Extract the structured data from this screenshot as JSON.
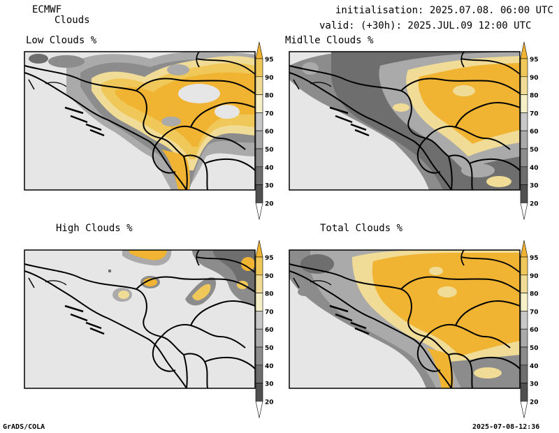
{
  "header": {
    "model": "ECMWF",
    "product": "Clouds",
    "init": "initialisation: 2025.07.08. 06:00 UTC",
    "valid": "valid: (+30h): 2025.JUL.09 12:00 UTC"
  },
  "panels": [
    {
      "title": "Low Clouds %"
    },
    {
      "title": "Midlle Clouds %"
    },
    {
      "title": "High Clouds %"
    },
    {
      "title": "Total Clouds %"
    }
  ],
  "colorbar": {
    "levels": [
      "20",
      "30",
      "40",
      "50",
      "60",
      "70",
      "80",
      "90",
      "95"
    ],
    "colors": {
      "below20": "#ffffff",
      "20-30": "#505050",
      "30-40": "#6e6e6e",
      "40-50": "#8c8c8c",
      "50-60": "#aaaaaa",
      "60-70": "#c8c8c8",
      "70-80": "#f5f0c8",
      "80-90": "#f0dc96",
      "90-95": "#f0c85a",
      "above95": "#f0b432"
    }
  },
  "footer": {
    "left": "GrADS/COLA",
    "right": "2025-07-08-12:36"
  }
}
